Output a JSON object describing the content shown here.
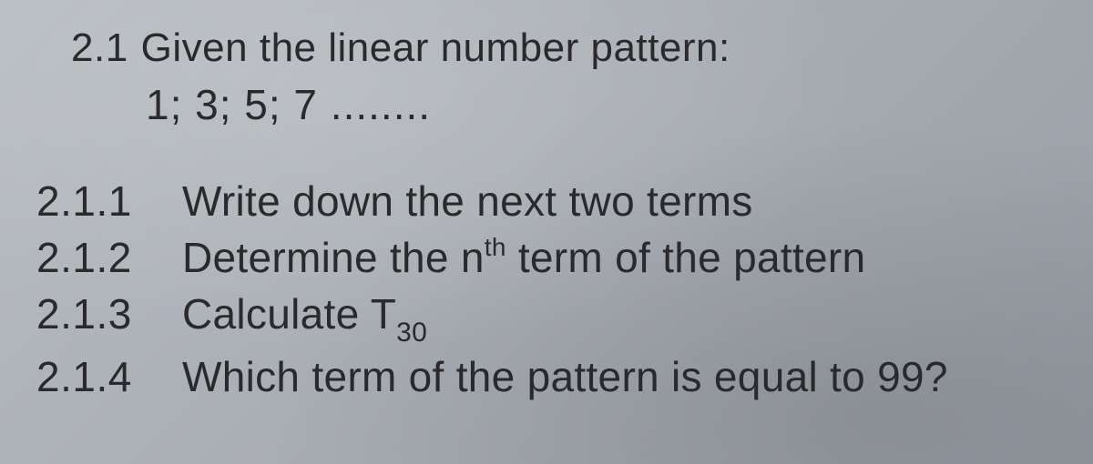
{
  "background_color": "#a8adb3",
  "text_color": "#2a2a2d",
  "font_family": "Arial",
  "base_fontsize": 46,
  "intro": {
    "number": "2.1",
    "text": "Given the linear number pattern:",
    "sequence": "1; 3; 5; 7 ........"
  },
  "questions": [
    {
      "number": "2.1.1",
      "text_before": "Write down the next two terms",
      "has_sup": false,
      "has_sub": false
    },
    {
      "number": "2.1.2",
      "text_before": "Determine the n",
      "sup": "th",
      "text_after": " term of the pattern",
      "has_sup": true,
      "has_sub": false
    },
    {
      "number": "2.1.3",
      "text_before": "Calculate T",
      "sub": "30",
      "text_after": "",
      "has_sup": false,
      "has_sub": true
    },
    {
      "number": "2.1.4",
      "text_before": "Which term of the pattern is equal to 99?",
      "has_sup": false,
      "has_sub": false
    }
  ]
}
